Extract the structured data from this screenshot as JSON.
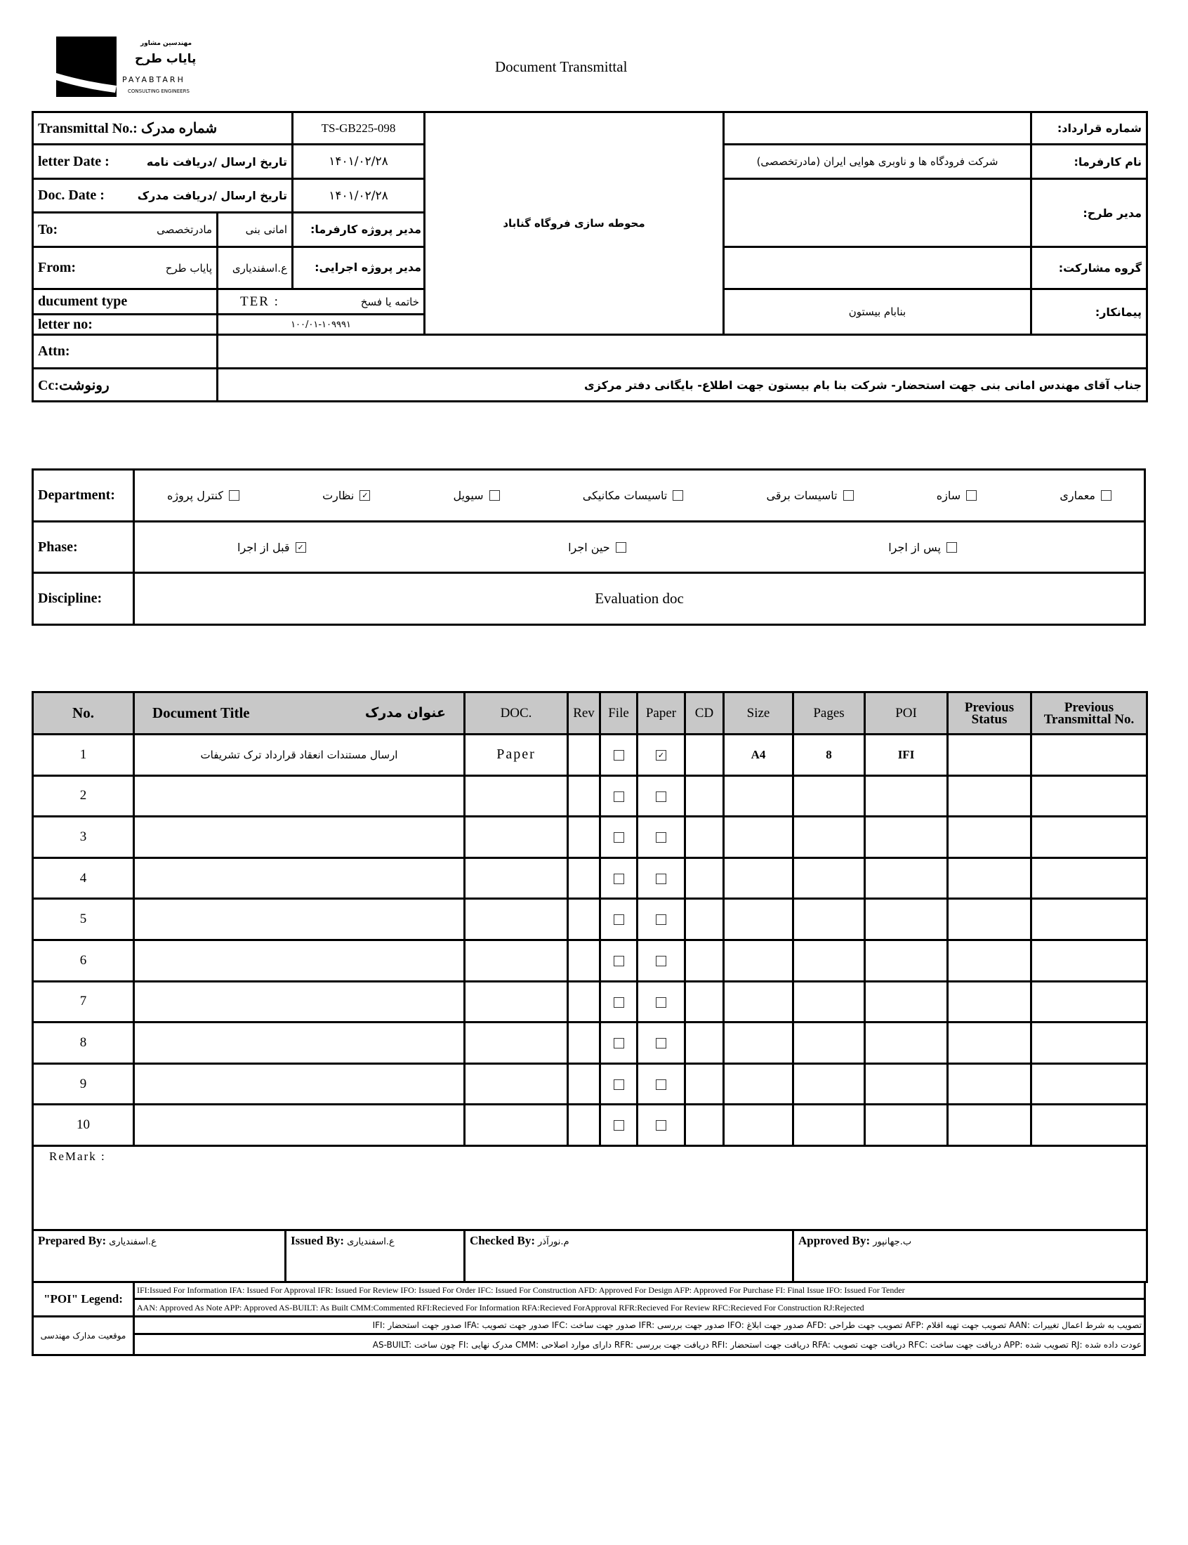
{
  "logo": {
    "fa_line1": "مهندسین مشاور",
    "fa_line2": "پایاب طرح",
    "en_name": "PAYABTARH",
    "en_sub": "CONSULTING ENGINEERS"
  },
  "title": "Document Transmittal",
  "header": {
    "transmittal_no_label": "Transmittal No.: شماره مدرک",
    "transmittal_no": "TS-GB225-098",
    "letter_date_label": "letter Date  :",
    "letter_date_fa": "تاریخ ارسال /دریافت نامه",
    "letter_date": "۱۴۰۱/۰۲/۲۸",
    "doc_date_label": "Doc. Date :",
    "doc_date_fa": "تاریخ ارسال /دریافت مدرک",
    "doc_date": "۱۴۰۱/۰۲/۲۸",
    "to_label": "To:",
    "to_org": "مادرتخصصی",
    "to_person": "امانی بنی",
    "client_pm_label": "مدیر پروژه کارفرما:",
    "from_label": "From:",
    "from_org": "پایاب طرح",
    "from_person": "ع.اسفندیاری",
    "exec_pm_label": "مدیر پروژه اجرایی:",
    "doc_type_label": "ducument type",
    "doc_type_code": "TER     :",
    "doc_type_fa": "خاتمه یا فسخ",
    "letter_no_label": "letter no:",
    "letter_no": "۱۰۰/۰۱-۱۰۹۹۹۱",
    "project": "محوطه سازی فروگاه گناباد",
    "contract_no_label": "شماره قرارداد:",
    "contract_no": "",
    "client_label": "نام کارفرما:",
    "client": "شرکت فرودگاه ها و ناوبری هوایی ایران (مادرتخصصی)",
    "plan_manager_label": "مدیر طرح:",
    "plan_manager": "",
    "partnership_label": "گروه مشارکت:",
    "partnership": "",
    "contractor_label": "پیمانکار:",
    "contractor": "بنابام بیستون",
    "attn_label": "Attn:",
    "attn": "",
    "cc_label": "Cc:رونوشت",
    "cc": "جناب آقای مهندس امانی بنی جهت استحضار- شرکت بنا بام بیستون جهت اطلاع- بایگانی دفتر مرکزی"
  },
  "department": {
    "label": "Department:",
    "options": [
      {
        "label": "معماری",
        "checked": false
      },
      {
        "label": "سازه",
        "checked": false
      },
      {
        "label": "تاسیسات برقی",
        "checked": false
      },
      {
        "label": "تاسیسات مکانیکی",
        "checked": false
      },
      {
        "label": "سیویل",
        "checked": false
      },
      {
        "label": "نظارت",
        "checked": true
      },
      {
        "label": "کنترل پروژه",
        "checked": false
      }
    ]
  },
  "phase": {
    "label": "Phase:",
    "options": [
      {
        "label": "پس از اجرا",
        "checked": false
      },
      {
        "label": "حین اجرا",
        "checked": false
      },
      {
        "label": "قبل از اجرا",
        "checked": true
      }
    ]
  },
  "discipline": {
    "label": "Discipline:",
    "value": "Evaluation doc"
  },
  "docs": {
    "columns": {
      "no": "No.",
      "title_en": "Document Title",
      "title_fa": "عنوان مدرک",
      "doc": "DOC.",
      "rev": "Rev",
      "file": "File",
      "paper": "Paper",
      "cd": "CD",
      "size": "Size",
      "pages": "Pages",
      "poi": "POI",
      "prev_status_1": "Previous",
      "prev_status_2": "Status",
      "prev_tr_1": "Previous",
      "prev_tr_2": "Transmittal No."
    },
    "rows": [
      {
        "no": "1",
        "title": "ارسال مستندات انعقاد قرارداد ترک تشریفات",
        "doc": "Paper",
        "rev": "",
        "file": false,
        "paper": true,
        "cd": "",
        "size": "A4",
        "pages": "8",
        "poi": "IFI",
        "prev_status": "",
        "prev_tr": ""
      },
      {
        "no": "2",
        "file": false,
        "paper": false
      },
      {
        "no": "3",
        "file": false,
        "paper": false
      },
      {
        "no": "4",
        "file": false,
        "paper": false
      },
      {
        "no": "5",
        "file": false,
        "paper": false
      },
      {
        "no": "6",
        "file": false,
        "paper": false
      },
      {
        "no": "7",
        "file": false,
        "paper": false
      },
      {
        "no": "8",
        "file": false,
        "paper": false
      },
      {
        "no": "9",
        "file": false,
        "paper": false
      },
      {
        "no": "10",
        "file": false,
        "paper": false
      }
    ]
  },
  "remark_label": "ReMark :",
  "signatures": {
    "prepared_label": "Prepared By:",
    "prepared": "ع.اسفندیاری",
    "issued_label": "Issued By:",
    "issued": "ع.اسفندیاری",
    "checked_label": "Checked By:",
    "checked": "م.نورآذر",
    "approved_label": "Approved By:",
    "approved": "ب.جهانپور"
  },
  "legend": {
    "label": "\"POI\" Legend:",
    "line1": "IFI:Issued For Information  IFA: Issued For Approval  IFR: Issued For Review   IFO: Issued For Order  IFC: Issued For Construction AFD: Approved For Design AFP: Approved For Purchase  FI: Final Issue  IFO: Issued For Tender",
    "line2": "AAN: Approved As Note  APP: Approved  AS-BUILT: As Built CMM:Commented  RFI:Recieved For Information  RFA:Recieved ForApproval   RFR:Recieved For Review  RFC:Recieved For Construction  RJ:Rejected",
    "fa_label": "موقعیت مدارک مهندسی",
    "fa_line1": "IFI: صدور جهت استحضار     IFA: صدور جهت تصویب   IFC: صدور جهت ساخت    IFR: صدور جهت بررسی   IFO: صدور جهت ابلاغ    AFD: تصویب جهت طراحی     AFP: تصویب جهت تهیه اقلام      AAN: تصویب به شرط اعمال تغییرات",
    "fa_line2": "AS-BUILT: چون ساخت    FI: مدرک نهایی    CMM: دارای موارد اصلاحی     RFR: دریافت جهت بررسی   RFI: دریافت جهت استحضار   RFA: دریافت جهت تصویب     RFC: دریافت جهت ساخت     APP: تصویب شده      RJ: عودت داده شده"
  }
}
